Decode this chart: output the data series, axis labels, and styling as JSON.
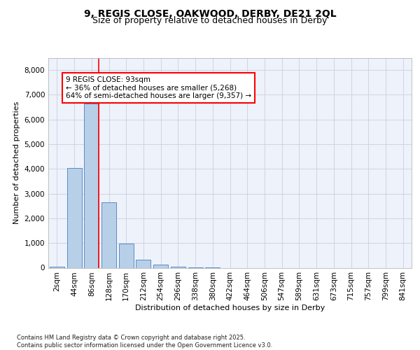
{
  "title1": "9, REGIS CLOSE, OAKWOOD, DERBY, DE21 2QL",
  "title2": "Size of property relative to detached houses in Derby",
  "xlabel": "Distribution of detached houses by size in Derby",
  "ylabel": "Number of detached properties",
  "bar_labels": [
    "2sqm",
    "44sqm",
    "86sqm",
    "128sqm",
    "170sqm",
    "212sqm",
    "254sqm",
    "296sqm",
    "338sqm",
    "380sqm",
    "422sqm",
    "464sqm",
    "506sqm",
    "547sqm",
    "589sqm",
    "631sqm",
    "673sqm",
    "715sqm",
    "757sqm",
    "799sqm",
    "841sqm"
  ],
  "bar_values": [
    50,
    4050,
    6650,
    2650,
    980,
    340,
    120,
    55,
    20,
    5,
    0,
    0,
    0,
    0,
    0,
    0,
    0,
    0,
    0,
    0,
    0
  ],
  "bar_color": "#b8cfe8",
  "bar_edge_color": "#5b8cc8",
  "vline_x": 2.4,
  "vline_color": "red",
  "vline_linewidth": 1.2,
  "annotation_text": "9 REGIS CLOSE: 93sqm\n← 36% of detached houses are smaller (5,268)\n64% of semi-detached houses are larger (9,357) →",
  "annotation_box_color": "white",
  "annotation_box_edgecolor": "red",
  "ylim": [
    0,
    8500
  ],
  "yticks": [
    0,
    1000,
    2000,
    3000,
    4000,
    5000,
    6000,
    7000,
    8000
  ],
  "background_color": "#eef2fa",
  "grid_color": "#c8d0e0",
  "footer_text": "Contains HM Land Registry data © Crown copyright and database right 2025.\nContains public sector information licensed under the Open Government Licence v3.0.",
  "title_fontsize": 10,
  "subtitle_fontsize": 9,
  "axis_label_fontsize": 8,
  "tick_fontsize": 7.5,
  "annotation_fontsize": 7.5
}
